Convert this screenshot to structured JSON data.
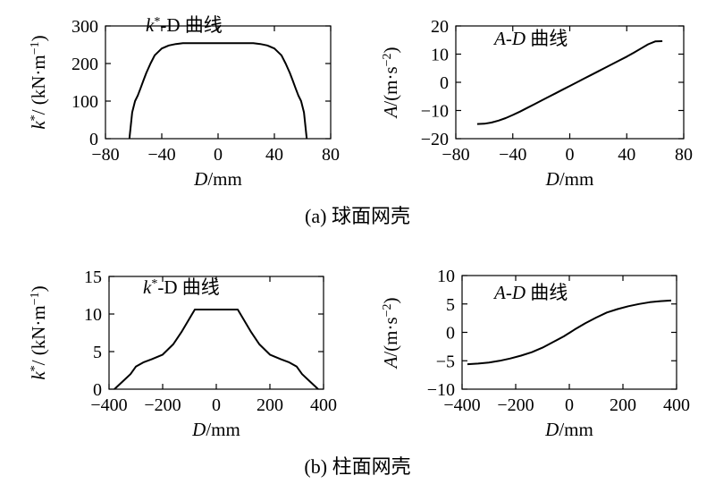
{
  "captions": {
    "a": "(a) 球面网壳",
    "b": "(b) 柱面网壳"
  },
  "chart_data": [
    {
      "id": "a-left",
      "type": "line",
      "title_main": "k",
      "title_sup": "*",
      "title_rest": "-D 曲线",
      "xlabel_main": "D",
      "xlabel_unit": "/mm",
      "ylabel_main": "k",
      "ylabel_sup": "*",
      "ylabel_unit": "/ (kN·m",
      "ylabel_unit_sup": "−1",
      "ylabel_close": ")",
      "xlim": [
        -80,
        80
      ],
      "ylim": [
        0,
        300
      ],
      "xticks": [
        "−80",
        "−40",
        "0",
        "40",
        "80"
      ],
      "yticks": [
        "0",
        "100",
        "200",
        "300"
      ],
      "series": [
        {
          "x": [
            -63,
            -61,
            -59,
            -57,
            -55,
            -53,
            -51,
            -48,
            -45,
            -40,
            -35,
            -30,
            -25,
            -20,
            -10,
            0,
            10,
            20,
            25,
            30,
            35,
            40,
            45,
            48,
            51,
            53,
            55,
            57,
            59,
            61,
            63
          ],
          "y": [
            0,
            70,
            100,
            115,
            135,
            155,
            175,
            200,
            222,
            240,
            248,
            252,
            254,
            254,
            254,
            254,
            254,
            254,
            254,
            252,
            248,
            240,
            222,
            200,
            175,
            155,
            135,
            115,
            100,
            70,
            0
          ]
        }
      ]
    },
    {
      "id": "a-right",
      "type": "line",
      "title_main": "A-D",
      "title_rest": " 曲线",
      "xlabel_main": "D",
      "xlabel_unit": "/mm",
      "ylabel_main": "A",
      "ylabel_unit": "/(m·s",
      "ylabel_unit_sup": "−2",
      "ylabel_close": ")",
      "xlim": [
        -80,
        80
      ],
      "ylim": [
        -20,
        20
      ],
      "xticks": [
        "−80",
        "−40",
        "0",
        "40",
        "80"
      ],
      "yticks": [
        "−20",
        "−10",
        "0",
        "10",
        "20"
      ],
      "series": [
        {
          "x": [
            -65,
            -60,
            -55,
            -50,
            -45,
            -40,
            -35,
            -30,
            -25,
            -20,
            -15,
            -10,
            -5,
            0,
            5,
            10,
            15,
            20,
            25,
            30,
            35,
            40,
            45,
            50,
            55,
            60,
            65
          ],
          "y": [
            -14.8,
            -14.7,
            -14.3,
            -13.6,
            -12.7,
            -11.6,
            -10.4,
            -9.1,
            -7.8,
            -6.5,
            -5.2,
            -3.9,
            -2.6,
            -1.3,
            0.0,
            1.3,
            2.6,
            3.9,
            5.2,
            6.5,
            7.8,
            9.1,
            10.5,
            12.0,
            13.5,
            14.5,
            14.6
          ]
        }
      ]
    },
    {
      "id": "b-left",
      "type": "line",
      "title_main": "k",
      "title_sup": "*",
      "title_rest": "-D 曲线",
      "xlabel_main": "D",
      "xlabel_unit": "/mm",
      "ylabel_main": "k",
      "ylabel_sup": "*",
      "ylabel_unit": "/ (kN·m",
      "ylabel_unit_sup": "−1",
      "ylabel_close": ")",
      "xlim": [
        -400,
        400
      ],
      "ylim": [
        0,
        15
      ],
      "xticks": [
        "−400",
        "−200",
        "0",
        "200",
        "400"
      ],
      "yticks": [
        "0",
        "5",
        "10",
        "15"
      ],
      "series": [
        {
          "x": [
            -380,
            -350,
            -320,
            -300,
            -270,
            -240,
            -200,
            -160,
            -130,
            -110,
            -90,
            -80,
            -40,
            0,
            40,
            80,
            90,
            110,
            130,
            160,
            200,
            240,
            270,
            300,
            320,
            350,
            380
          ],
          "y": [
            0,
            1.0,
            2.0,
            3.0,
            3.6,
            4.0,
            4.6,
            6.0,
            7.6,
            8.8,
            10.0,
            10.6,
            10.6,
            10.6,
            10.6,
            10.6,
            10.0,
            8.8,
            7.6,
            6.0,
            4.6,
            4.0,
            3.6,
            3.0,
            2.0,
            1.0,
            0
          ]
        }
      ]
    },
    {
      "id": "b-right",
      "type": "line",
      "title_main": "A-D",
      "title_rest": " 曲线",
      "xlabel_main": "D",
      "xlabel_unit": "/mm",
      "ylabel_main": "A",
      "ylabel_unit": "/(m·s",
      "ylabel_unit_sup": "−2",
      "ylabel_close": ")",
      "xlim": [
        -400,
        400
      ],
      "ylim": [
        -10,
        10
      ],
      "xticks": [
        "−400",
        "−200",
        "0",
        "200",
        "400"
      ],
      "yticks": [
        "−10",
        "−5",
        "0",
        "5",
        "10"
      ],
      "series": [
        {
          "x": [
            -380,
            -340,
            -300,
            -260,
            -220,
            -180,
            -140,
            -100,
            -60,
            -20,
            0,
            20,
            60,
            100,
            140,
            180,
            220,
            260,
            300,
            340,
            380
          ],
          "y": [
            -5.6,
            -5.5,
            -5.3,
            -5.0,
            -4.6,
            -4.1,
            -3.5,
            -2.7,
            -1.7,
            -0.7,
            -0.1,
            0.5,
            1.6,
            2.6,
            3.5,
            4.1,
            4.6,
            5.0,
            5.3,
            5.5,
            5.6
          ]
        }
      ]
    }
  ]
}
